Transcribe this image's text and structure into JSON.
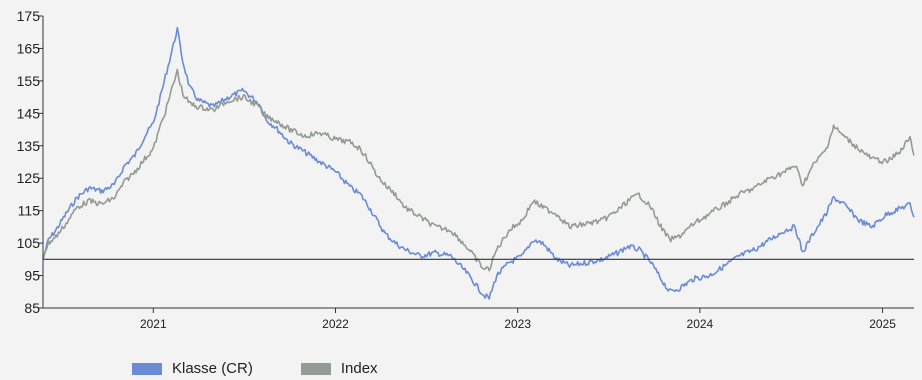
{
  "chart_data": {
    "type": "line",
    "title": "",
    "xlabel": "",
    "ylabel": "",
    "ylim": [
      85,
      175
    ],
    "yticks": [
      85,
      95,
      105,
      115,
      125,
      135,
      145,
      155,
      165,
      175
    ],
    "xlim": [
      "2020-05-25",
      "2025-03-05"
    ],
    "xticks": [
      {
        "label": "2021",
        "date": "2021-01-01"
      },
      {
        "label": "2022",
        "date": "2022-01-01"
      },
      {
        "label": "2023",
        "date": "2023-01-01"
      },
      {
        "label": "2024",
        "date": "2024-01-01"
      },
      {
        "label": "2025",
        "date": "2025-01-01"
      }
    ],
    "reference_line": 100,
    "grid": false,
    "legend_position": "bottom-left",
    "series": [
      {
        "name": "Klasse (CR)",
        "color": "#6b8bd6",
        "points": [
          [
            "2020-05-25",
            100
          ],
          [
            "2020-06-05",
            106
          ],
          [
            "2020-06-20",
            109
          ],
          [
            "2020-07-10",
            114
          ],
          [
            "2020-08-01",
            119
          ],
          [
            "2020-08-25",
            122
          ],
          [
            "2020-09-20",
            121
          ],
          [
            "2020-10-15",
            123
          ],
          [
            "2020-11-05",
            129
          ],
          [
            "2020-11-25",
            132
          ],
          [
            "2020-12-15",
            138
          ],
          [
            "2021-01-01",
            142
          ],
          [
            "2021-01-15",
            150
          ],
          [
            "2021-01-28",
            158
          ],
          [
            "2021-02-10",
            166
          ],
          [
            "2021-02-18",
            171
          ],
          [
            "2021-03-01",
            161
          ],
          [
            "2021-03-15",
            153
          ],
          [
            "2021-04-01",
            149
          ],
          [
            "2021-05-01",
            147
          ],
          [
            "2021-06-01",
            150
          ],
          [
            "2021-07-01",
            152
          ],
          [
            "2021-08-01",
            148
          ],
          [
            "2021-08-15",
            143
          ],
          [
            "2021-09-01",
            141
          ],
          [
            "2021-10-01",
            136
          ],
          [
            "2021-11-01",
            133
          ],
          [
            "2021-12-01",
            130
          ],
          [
            "2022-01-01",
            127
          ],
          [
            "2022-02-01",
            122
          ],
          [
            "2022-02-20",
            120
          ],
          [
            "2022-03-10",
            116
          ],
          [
            "2022-03-25",
            112
          ],
          [
            "2022-04-10",
            108
          ],
          [
            "2022-05-01",
            105
          ],
          [
            "2022-05-20",
            103
          ],
          [
            "2022-06-20",
            101
          ],
          [
            "2022-07-20",
            102
          ],
          [
            "2022-08-20",
            101
          ],
          [
            "2022-09-20",
            96
          ],
          [
            "2022-10-10",
            92
          ],
          [
            "2022-10-25",
            89
          ],
          [
            "2022-11-05",
            88
          ],
          [
            "2022-11-20",
            95
          ],
          [
            "2022-12-15",
            99
          ],
          [
            "2023-01-10",
            101
          ],
          [
            "2023-02-01",
            106
          ],
          [
            "2023-02-20",
            105
          ],
          [
            "2023-03-20",
            100
          ],
          [
            "2023-04-15",
            98
          ],
          [
            "2023-05-20",
            99
          ],
          [
            "2023-06-20",
            100
          ],
          [
            "2023-07-20",
            102
          ],
          [
            "2023-08-10",
            104
          ],
          [
            "2023-09-01",
            103
          ],
          [
            "2023-09-25",
            99
          ],
          [
            "2023-10-15",
            94
          ],
          [
            "2023-11-01",
            90
          ],
          [
            "2023-11-20",
            91
          ],
          [
            "2023-12-20",
            94
          ],
          [
            "2024-01-20",
            95
          ],
          [
            "2024-02-20",
            98
          ],
          [
            "2024-03-20",
            101
          ],
          [
            "2024-04-20",
            103
          ],
          [
            "2024-05-20",
            106
          ],
          [
            "2024-06-20",
            109
          ],
          [
            "2024-07-10",
            110
          ],
          [
            "2024-07-25",
            102
          ],
          [
            "2024-08-15",
            108
          ],
          [
            "2024-09-10",
            114
          ],
          [
            "2024-09-25",
            119
          ],
          [
            "2024-10-15",
            117
          ],
          [
            "2024-11-15",
            112
          ],
          [
            "2024-12-10",
            110
          ],
          [
            "2025-01-10",
            114
          ],
          [
            "2025-02-10",
            116
          ],
          [
            "2025-02-25",
            117
          ],
          [
            "2025-03-05",
            113
          ]
        ]
      },
      {
        "name": "Index",
        "color": "#949a94",
        "points": [
          [
            "2020-05-25",
            101
          ],
          [
            "2020-06-05",
            105
          ],
          [
            "2020-06-20",
            107
          ],
          [
            "2020-07-10",
            111
          ],
          [
            "2020-08-01",
            116
          ],
          [
            "2020-08-25",
            118
          ],
          [
            "2020-09-20",
            117
          ],
          [
            "2020-10-15",
            119
          ],
          [
            "2020-11-05",
            124
          ],
          [
            "2020-11-25",
            127
          ],
          [
            "2020-12-15",
            131
          ],
          [
            "2021-01-01",
            134
          ],
          [
            "2021-01-15",
            141
          ],
          [
            "2021-01-28",
            147
          ],
          [
            "2021-02-10",
            154
          ],
          [
            "2021-02-18",
            158
          ],
          [
            "2021-03-01",
            151
          ],
          [
            "2021-03-15",
            148
          ],
          [
            "2021-04-01",
            147
          ],
          [
            "2021-05-01",
            146
          ],
          [
            "2021-06-01",
            149
          ],
          [
            "2021-07-01",
            150
          ],
          [
            "2021-08-01",
            147
          ],
          [
            "2021-08-15",
            144
          ],
          [
            "2021-09-01",
            143
          ],
          [
            "2021-10-01",
            140
          ],
          [
            "2021-11-01",
            138
          ],
          [
            "2021-12-01",
            139
          ],
          [
            "2022-01-01",
            137
          ],
          [
            "2022-02-01",
            136
          ],
          [
            "2022-02-20",
            134
          ],
          [
            "2022-03-10",
            130
          ],
          [
            "2022-03-25",
            126
          ],
          [
            "2022-04-10",
            123
          ],
          [
            "2022-05-01",
            120
          ],
          [
            "2022-05-20",
            116
          ],
          [
            "2022-06-20",
            113
          ],
          [
            "2022-07-20",
            110
          ],
          [
            "2022-08-20",
            109
          ],
          [
            "2022-09-20",
            104
          ],
          [
            "2022-10-10",
            100
          ],
          [
            "2022-10-25",
            97
          ],
          [
            "2022-11-05",
            97
          ],
          [
            "2022-11-20",
            103
          ],
          [
            "2022-12-15",
            109
          ],
          [
            "2023-01-10",
            112
          ],
          [
            "2023-02-01",
            118
          ],
          [
            "2023-02-20",
            116
          ],
          [
            "2023-03-20",
            114
          ],
          [
            "2023-04-15",
            110
          ],
          [
            "2023-05-20",
            111
          ],
          [
            "2023-06-20",
            112
          ],
          [
            "2023-07-20",
            115
          ],
          [
            "2023-08-10",
            118
          ],
          [
            "2023-09-01",
            120
          ],
          [
            "2023-09-25",
            116
          ],
          [
            "2023-10-15",
            110
          ],
          [
            "2023-11-01",
            106
          ],
          [
            "2023-11-20",
            107
          ],
          [
            "2023-12-20",
            111
          ],
          [
            "2024-01-20",
            114
          ],
          [
            "2024-02-20",
            117
          ],
          [
            "2024-03-20",
            120
          ],
          [
            "2024-04-20",
            122
          ],
          [
            "2024-05-20",
            125
          ],
          [
            "2024-06-20",
            127
          ],
          [
            "2024-07-10",
            129
          ],
          [
            "2024-07-25",
            123
          ],
          [
            "2024-08-15",
            129
          ],
          [
            "2024-09-10",
            134
          ],
          [
            "2024-09-25",
            141
          ],
          [
            "2024-10-15",
            138
          ],
          [
            "2024-11-15",
            134
          ],
          [
            "2024-12-10",
            131
          ],
          [
            "2025-01-10",
            130
          ],
          [
            "2025-02-10",
            134
          ],
          [
            "2025-02-25",
            138
          ],
          [
            "2025-03-05",
            132
          ]
        ]
      }
    ]
  }
}
